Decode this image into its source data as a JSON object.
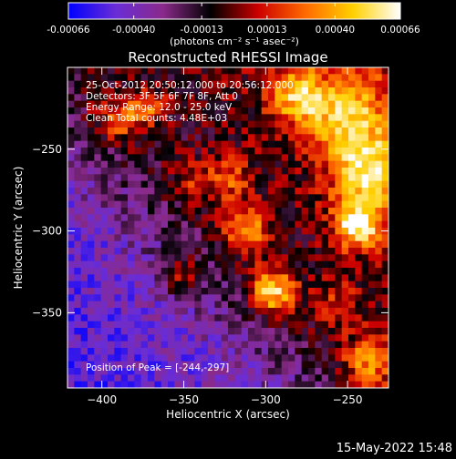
{
  "colorbar": {
    "tick_labels": [
      "-0.00066",
      "-0.00040",
      "-0.00013",
      "0.00013",
      "0.00040",
      "0.00066"
    ],
    "tick_values": [
      -0.00066,
      -0.0004,
      -0.00013,
      0.00013,
      0.0004,
      0.00066
    ],
    "range": [
      -0.00066,
      0.00066
    ],
    "units": "(photons cm⁻² s⁻¹ asec⁻²)",
    "colors": [
      "#0000ff",
      "#6a2dd6",
      "#8a2a8a",
      "#000000",
      "#cc0000",
      "#ff6a00",
      "#ffd000",
      "#ffffff"
    ]
  },
  "chart_data": {
    "type": "heatmap",
    "title": "Reconstructed RHESSI Image",
    "xlabel": "Heliocentric X (arcsec)",
    "ylabel": "Heliocentric Y (arcsec)",
    "xlim": [
      -421,
      -225
    ],
    "ylim": [
      -396,
      -200
    ],
    "x_ticks": [
      -400,
      -350,
      -300,
      -250
    ],
    "x_tick_labels": [
      "−400",
      "−350",
      "−300",
      "−250"
    ],
    "y_ticks": [
      -250,
      -300,
      -350
    ],
    "y_tick_labels": [
      "−250",
      "−300",
      "−350"
    ],
    "info_lines": [
      "25-Oct-2012 20:50:12.000 to 20:56:12.000",
      "Detectors: 3F 5F 6F 7F 8F, Att 0",
      "Energy Range: 12.0 - 25.0 keV",
      "Clean    Total counts: 4.48E+03"
    ],
    "peak_label": "Position of Peak = [-244,-297]",
    "peak": {
      "x": -244,
      "y": -297
    },
    "grid": false,
    "colormap": "blue-purple-black-red-yellow-white"
  },
  "footer": {
    "timestamp": "15-May-2022 15:48"
  }
}
